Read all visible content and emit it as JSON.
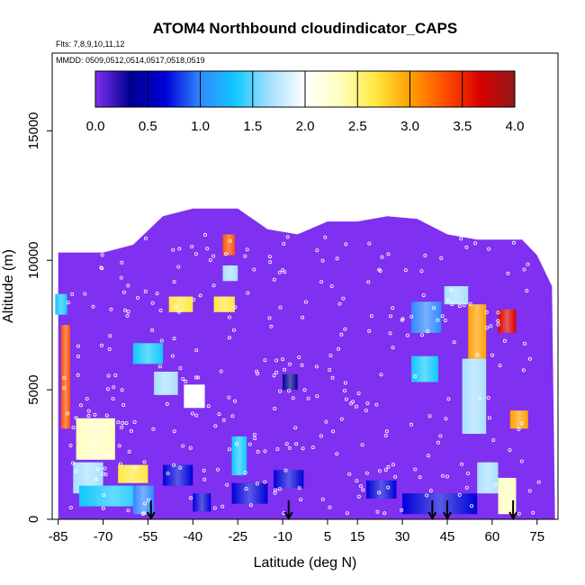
{
  "chart_data": {
    "type": "heatmap",
    "title": "ATOM4 Northbound cloudindicator_CAPS",
    "subtitle_flights": "Flts: 7,8,9,10,11,12",
    "subtitle_dates": "MMDD: 0509,0512,0514,0517,0518,0519",
    "xlabel": "Latitude (deg N)",
    "ylabel": "Altitude (m)",
    "x_ticks": [
      -85,
      -70,
      -55,
      -40,
      -25,
      -10,
      5,
      15,
      30,
      45,
      60,
      75
    ],
    "y_ticks": [
      0,
      5000,
      10000,
      15000
    ],
    "xlim": [
      -87,
      82
    ],
    "ylim": [
      0,
      18000
    ],
    "colorbar": {
      "min": 0.0,
      "max": 4.0,
      "ticks": [
        0.0,
        0.5,
        1.0,
        1.5,
        2.0,
        2.5,
        3.0,
        3.5,
        4.0
      ],
      "tick_labels": [
        "0.0",
        "0.5",
        "1.0",
        "1.5",
        "2.0",
        "2.5",
        "3.0",
        "3.5",
        "4.0"
      ],
      "colors": [
        "#8030f0",
        "#000090",
        "#0000d8",
        "#3088ff",
        "#10c8ff",
        "#a8e0ff",
        "#ffffff",
        "#ffffc0",
        "#ffe840",
        "#ffa000",
        "#ff5000",
        "#d80000",
        "#901818"
      ]
    },
    "background_value": 0.0,
    "envelope": [
      [
        -85,
        10300
      ],
      [
        -70,
        10300
      ],
      [
        -60,
        10600
      ],
      [
        -50,
        11700
      ],
      [
        -40,
        12000
      ],
      [
        -25,
        12000
      ],
      [
        -15,
        11200
      ],
      [
        -5,
        11000
      ],
      [
        5,
        11500
      ],
      [
        15,
        11500
      ],
      [
        25,
        11700
      ],
      [
        35,
        11600
      ],
      [
        45,
        11000
      ],
      [
        55,
        10800
      ],
      [
        62,
        10800
      ],
      [
        70,
        10800
      ],
      [
        75,
        10200
      ],
      [
        80,
        9000
      ],
      [
        81,
        0
      ],
      [
        -85,
        0
      ]
    ],
    "cloud_features": [
      {
        "lat": [
          -84,
          -81
        ],
        "alt": [
          3500,
          7500
        ],
        "value": 3.2
      },
      {
        "lat": [
          -86,
          -82
        ],
        "alt": [
          7900,
          8700
        ],
        "value": 1.4
      },
      {
        "lat": [
          -79,
          -66
        ],
        "alt": [
          2300,
          3900
        ],
        "value": 2.2
      },
      {
        "lat": [
          -80,
          -70
        ],
        "alt": [
          1000,
          2200
        ],
        "value": 1.5
      },
      {
        "lat": [
          -78,
          -55
        ],
        "alt": [
          500,
          1300
        ],
        "value": 1.2
      },
      {
        "lat": [
          -65,
          -55
        ],
        "alt": [
          1400,
          2100
        ],
        "value": 2.8
      },
      {
        "lat": [
          -60,
          -50
        ],
        "alt": [
          6000,
          6800
        ],
        "value": 1.3
      },
      {
        "lat": [
          -60,
          -53
        ],
        "alt": [
          200,
          1300
        ],
        "value": 0.9
      },
      {
        "lat": [
          -53,
          -45
        ],
        "alt": [
          4800,
          5700
        ],
        "value": 1.6
      },
      {
        "lat": [
          -50,
          -40
        ],
        "alt": [
          1300,
          2100
        ],
        "value": 0.8
      },
      {
        "lat": [
          -48,
          -40
        ],
        "alt": [
          8000,
          8600
        ],
        "value": 2.5
      },
      {
        "lat": [
          -43,
          -36
        ],
        "alt": [
          4300,
          5200
        ],
        "value": 2.0
      },
      {
        "lat": [
          -40,
          -34
        ],
        "alt": [
          300,
          1000
        ],
        "value": 0.7
      },
      {
        "lat": [
          -33,
          -26
        ],
        "alt": [
          8000,
          8600
        ],
        "value": 2.6
      },
      {
        "lat": [
          -30,
          -25
        ],
        "alt": [
          9200,
          9800
        ],
        "value": 1.5
      },
      {
        "lat": [
          -30,
          -26
        ],
        "alt": [
          10200,
          11000
        ],
        "value": 3.3
      },
      {
        "lat": [
          -27,
          -22
        ],
        "alt": [
          1700,
          3200
        ],
        "value": 1.2
      },
      {
        "lat": [
          -27,
          -15
        ],
        "alt": [
          600,
          1400
        ],
        "value": 0.6
      },
      {
        "lat": [
          -13,
          -3
        ],
        "alt": [
          1200,
          1900
        ],
        "value": 0.5
      },
      {
        "lat": [
          -10,
          -5
        ],
        "alt": [
          5000,
          5600
        ],
        "value": 0.3
      },
      {
        "lat": [
          18,
          28
        ],
        "alt": [
          800,
          1500
        ],
        "value": 0.5
      },
      {
        "lat": [
          33,
          43
        ],
        "alt": [
          7200,
          8400
        ],
        "value": 0.9
      },
      {
        "lat": [
          33,
          42
        ],
        "alt": [
          5300,
          6300
        ],
        "value": 1.4
      },
      {
        "lat": [
          30,
          55
        ],
        "alt": [
          200,
          1000
        ],
        "value": 0.6
      },
      {
        "lat": [
          44,
          52
        ],
        "alt": [
          8300,
          9000
        ],
        "value": 1.8
      },
      {
        "lat": [
          52,
          58
        ],
        "alt": [
          6200,
          8300
        ],
        "value": 3.1
      },
      {
        "lat": [
          50,
          58
        ],
        "alt": [
          3300,
          6200
        ],
        "value": 1.7
      },
      {
        "lat": [
          55,
          62
        ],
        "alt": [
          1000,
          2200
        ],
        "value": 1.6
      },
      {
        "lat": [
          62,
          68
        ],
        "alt": [
          7200,
          8100
        ],
        "value": 3.5
      },
      {
        "lat": [
          66,
          72
        ],
        "alt": [
          3500,
          4200
        ],
        "value": 3.0
      },
      {
        "lat": [
          62,
          68
        ],
        "alt": [
          200,
          1600
        ],
        "value": 2.3
      }
    ],
    "arrows_lat": [
      -54,
      -8,
      40,
      45,
      67
    ]
  }
}
